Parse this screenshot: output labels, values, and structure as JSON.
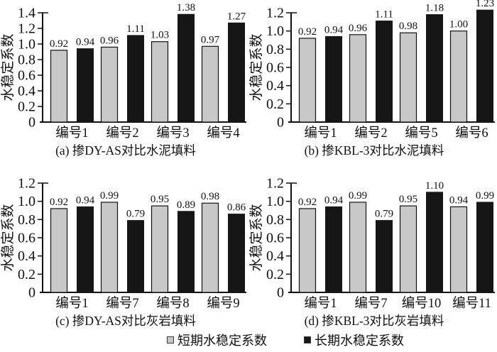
{
  "colors": {
    "short_term": "#c8c8c8",
    "long_term": "#161616",
    "axis": "#111111",
    "background": "#ffffff",
    "text": "#111111"
  },
  "legend": {
    "short_label": "短期水稳定系数",
    "long_label": "长期水稳定系数"
  },
  "chart_data": [
    {
      "type": "bar",
      "id": "a",
      "title": "(a) 掺DY-AS对比水泥填料",
      "ylabel": "水稳定系数",
      "xlabel": "",
      "ylim": [
        0,
        1.4
      ],
      "ytick_step": 0.2,
      "grid": false,
      "legend_position": "bottom-shared",
      "categories": [
        "编号1",
        "编号2",
        "编号3",
        "编号4"
      ],
      "series": [
        {
          "name": "短期水稳定系数",
          "color_key": "short_term",
          "values": [
            0.92,
            0.96,
            1.03,
            0.97
          ]
        },
        {
          "name": "长期水稳定系数",
          "color_key": "long_term",
          "values": [
            0.94,
            1.11,
            1.38,
            1.27
          ]
        }
      ]
    },
    {
      "type": "bar",
      "id": "b",
      "title": "(b) 掺KBL-3对比水泥填料",
      "ylabel": "水稳定系数",
      "xlabel": "",
      "ylim": [
        0,
        1.2
      ],
      "ytick_step": 0.2,
      "grid": false,
      "legend_position": "bottom-shared",
      "categories": [
        "编号1",
        "编号2",
        "编号5",
        "编号6"
      ],
      "series": [
        {
          "name": "短期水稳定系数",
          "color_key": "short_term",
          "values": [
            0.92,
            0.96,
            0.98,
            1.0
          ]
        },
        {
          "name": "长期水稳定系数",
          "color_key": "long_term",
          "values": [
            0.94,
            1.11,
            1.18,
            1.23
          ]
        }
      ]
    },
    {
      "type": "bar",
      "id": "c",
      "title": "(c) 掺DY-AS对比灰岩填料",
      "ylabel": "水稳定系数",
      "xlabel": "",
      "ylim": [
        0,
        1.2
      ],
      "ytick_step": 0.2,
      "grid": false,
      "legend_position": "bottom-shared",
      "categories": [
        "编号1",
        "编号7",
        "编号8",
        "编号9"
      ],
      "series": [
        {
          "name": "短期水稳定系数",
          "color_key": "short_term",
          "values": [
            0.92,
            0.99,
            0.95,
            0.98
          ]
        },
        {
          "name": "长期水稳定系数",
          "color_key": "long_term",
          "values": [
            0.94,
            0.79,
            0.89,
            0.86
          ]
        }
      ]
    },
    {
      "type": "bar",
      "id": "d",
      "title": "(d) 掺KBL-3对比灰岩填料",
      "ylabel": "水稳定系数",
      "xlabel": "",
      "ylim": [
        0,
        1.2
      ],
      "ytick_step": 0.2,
      "grid": false,
      "legend_position": "bottom-shared",
      "categories": [
        "编号1",
        "编号7",
        "编号10",
        "编号11"
      ],
      "series": [
        {
          "name": "短期水稳定系数",
          "color_key": "short_term",
          "values": [
            0.92,
            0.99,
            0.95,
            0.94
          ]
        },
        {
          "name": "长期水稳定系数",
          "color_key": "long_term",
          "values": [
            0.94,
            0.79,
            1.1,
            0.99
          ]
        }
      ]
    }
  ]
}
